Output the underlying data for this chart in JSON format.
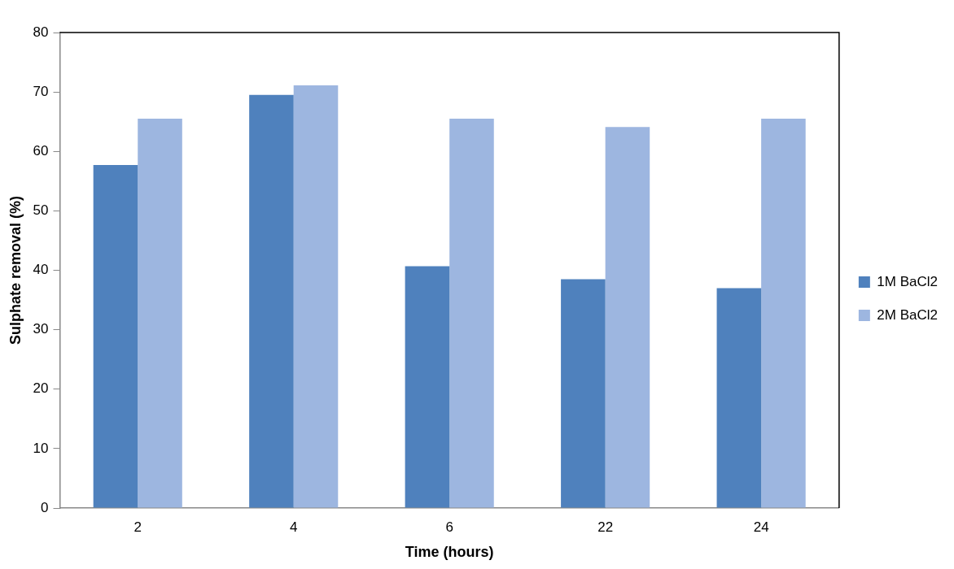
{
  "chart_data": {
    "type": "bar",
    "xlabel": "Time (hours)",
    "ylabel": "Sulphate removal (%)",
    "categories": [
      "2",
      "4",
      "6",
      "22",
      "24"
    ],
    "series": [
      {
        "name": "1M BaCl2",
        "color": "#4f81bd",
        "values": [
          57.7,
          69.5,
          40.7,
          38.5,
          37.0
        ]
      },
      {
        "name": "2M BaCl2",
        "color": "#9db6e0",
        "values": [
          65.5,
          71.1,
          65.5,
          64.1,
          65.5
        ]
      }
    ],
    "ylim": [
      0,
      80
    ],
    "yticks": [
      0,
      10,
      20,
      30,
      40,
      50,
      60,
      70,
      80
    ],
    "grid": false,
    "legend": "right"
  }
}
